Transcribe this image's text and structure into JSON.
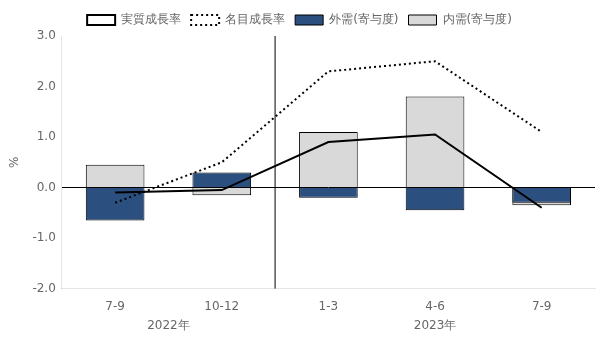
{
  "chart_data": {
    "type": "bar",
    "categories": [
      "7-9",
      "10-12",
      "1-3",
      "4-6",
      "7-9"
    ],
    "category_groups": [
      {
        "label": "2022年",
        "size": 2
      },
      {
        "label": "2023年",
        "size": 3
      }
    ],
    "y_label": "%",
    "series": [
      {
        "name": "内需(寄与度)",
        "type": "bar",
        "color": "#d9d9d9",
        "values": [
          0.45,
          -0.15,
          1.1,
          1.8,
          -0.35
        ]
      },
      {
        "name": "外需(寄与度)",
        "type": "bar",
        "color": "#2b4f7f",
        "values": [
          -0.65,
          0.3,
          -0.2,
          -0.45,
          -0.3
        ]
      },
      {
        "name": "実質成長率",
        "type": "line",
        "color": "#000000",
        "line_style": "solid",
        "values": [
          -0.1,
          -0.05,
          0.9,
          1.05,
          -0.4
        ]
      },
      {
        "name": "名目成長率",
        "type": "line",
        "color": "#000000",
        "line_style": "dotted",
        "values": [
          -0.3,
          0.5,
          2.3,
          2.5,
          1.1
        ]
      }
    ],
    "ylim": [
      -2.0,
      3.0
    ],
    "yticks": [
      {
        "value": -2.0,
        "label": "-2.0"
      },
      {
        "value": -1.0,
        "label": "-1.0"
      },
      {
        "value": 0.0,
        "label": "0.0"
      },
      {
        "value": 1.0,
        "label": "1.0"
      },
      {
        "value": 2.0,
        "label": "2.0"
      },
      {
        "value": 3.0,
        "label": "3.0"
      }
    ],
    "grid": false,
    "legend": "top"
  }
}
